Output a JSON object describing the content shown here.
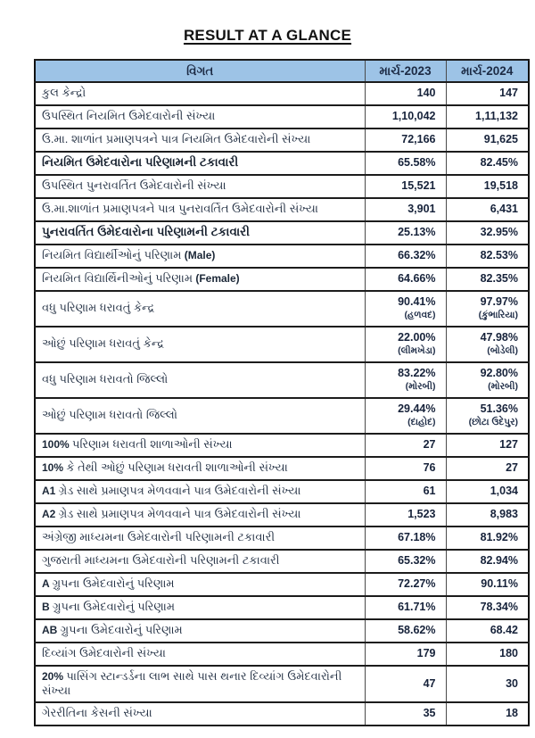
{
  "page_title": "RESULT AT A GLANCE",
  "table": {
    "headers": [
      "વિગત",
      "માર્ચ-2023",
      "માર્ચ-2024"
    ],
    "rows": [
      {
        "label": "કુલ કેન્દ્રો",
        "v1": "140",
        "v2": "147"
      },
      {
        "label": "ઉપસ્થિત નિયમિત ઉમેદવારોની સંખ્યા",
        "v1": "1,10,042",
        "v2": "1,11,132"
      },
      {
        "label": "ઉ.મા. શાળાંત પ્રમાણપત્રને પાત્ર નિયમિત ઉમેદવારોની સંખ્યા",
        "v1": "72,166",
        "v2": "91,625"
      },
      {
        "label": "નિયમિત ઉમેદવારોના પરિણામની ટકાવારી",
        "bold": true,
        "v1": "65.58%",
        "v2": "82.45%"
      },
      {
        "label": "ઉપસ્થિત પુનરાવર્તિત ઉમેદવારોની સંખ્યા",
        "v1": "15,521",
        "v2": "19,518"
      },
      {
        "label": "ઉ.મા.શાળાંત પ્રમાણપત્રને પાત્ર પુનરાવર્તિત ઉમેદવારોની સંખ્યા",
        "v1": "3,901",
        "v2": "6,431"
      },
      {
        "label": "પુનરાવર્તિત ઉમેદવારોના પરિણામની ટકાવારી",
        "bold": true,
        "v1": "25.13%",
        "v2": "32.95%"
      },
      {
        "label": "નિયમિત વિદ્યાર્થીઓનું પરિણામ",
        "suffix": "(Male)",
        "v1": "66.32%",
        "v2": "82.53%"
      },
      {
        "label": "નિયમિત વિદ્યાર્થિનીઓનું પરિણામ",
        "suffix": "(Female)",
        "v1": "64.66%",
        "v2": "82.35%"
      },
      {
        "label": "વધુ પરિણામ ધરાવતું કેન્દ્ર",
        "v1": "90.41%",
        "n1": "(હળવદ)",
        "v2": "97.97%",
        "n2": "(કુંભારિયા)"
      },
      {
        "label": "ઓછું પરિણામ ધરાવતું કેન્દ્ર",
        "v1": "22.00%",
        "n1": "(લીમખેડા)",
        "v2": "47.98%",
        "n2": "(બોડેલી)"
      },
      {
        "label": "વધુ પરિણામ ધરાવતો જિલ્લો",
        "v1": "83.22%",
        "n1": "(મોરબી)",
        "v2": "92.80%",
        "n2": "(મોરબી)"
      },
      {
        "label": "ઓછું પરિણામ ધરાવતો જિલ્લો",
        "v1": "29.44%",
        "n1": "(દાહોદ)",
        "v2": "51.36%",
        "n2": "(છોટા ઉદેપુર)"
      },
      {
        "prefix": "100%",
        "label": "પરિણામ ધરાવતી શાળાઓની સંખ્યા",
        "v1": "27",
        "v2": "127"
      },
      {
        "prefix": "10%",
        "label": "કે તેથી ઓછું પરિણામ ધરાવતી શાળાઓની સંખ્યા",
        "v1": "76",
        "v2": "27"
      },
      {
        "prefix": "A1",
        "label": "ગ્રેડ સાથે પ્રમાણપત્ર મેળવવાને પાત્ર ઉમેદવારોની સંખ્યા",
        "v1": "61",
        "v2": "1,034"
      },
      {
        "prefix": "A2",
        "label": "ગ્રેડ સાથે પ્રમાણપત્ર મેળવવાને પાત્ર ઉમેદવારોની સંખ્યા",
        "v1": "1,523",
        "v2": "8,983"
      },
      {
        "label": "અંગ્રેજી માધ્યમના ઉમેદવારોની પરિણામની ટકાવારી",
        "v1": "67.18%",
        "v2": "81.92%"
      },
      {
        "label": "ગુજરાતી માધ્યમના ઉમેદવારોની પરિણામની ટકાવારી",
        "v1": "65.32%",
        "v2": "82.94%"
      },
      {
        "prefix": "A",
        "label": "ગ્રુપના ઉમેદવારોનું પરિણામ",
        "v1": "72.27%",
        "v2": "90.11%"
      },
      {
        "prefix": "B",
        "label": "ગ્રુપના ઉમેદવારોનું પરિણામ",
        "v1": "61.71%",
        "v2": "78.34%"
      },
      {
        "prefix": "AB",
        "label": "ગ્રુપના ઉમેદવારોનું પરિણામ",
        "v1": "58.62%",
        "v2": "68.42"
      },
      {
        "label": "દિવ્યાંગ ઉમેદવારોની સંખ્યા",
        "v1": "179",
        "v2": "180"
      },
      {
        "prefix": "20%",
        "label": "પાસિંગ સ્ટાન્ડર્ડના લાભ સાથે પાસ થનાર દિવ્યાંગ ઉમેદવારોની સંખ્યા",
        "v1": "47",
        "v2": "30"
      },
      {
        "label": "ગેરરીતિના કેસની સંખ્યા",
        "v1": "35",
        "v2": "18"
      }
    ]
  },
  "colors": {
    "header_bg": "#9dc3e6",
    "header_text": "#1c2a44",
    "body_text": "#263346",
    "border": "#1c1c1c"
  }
}
